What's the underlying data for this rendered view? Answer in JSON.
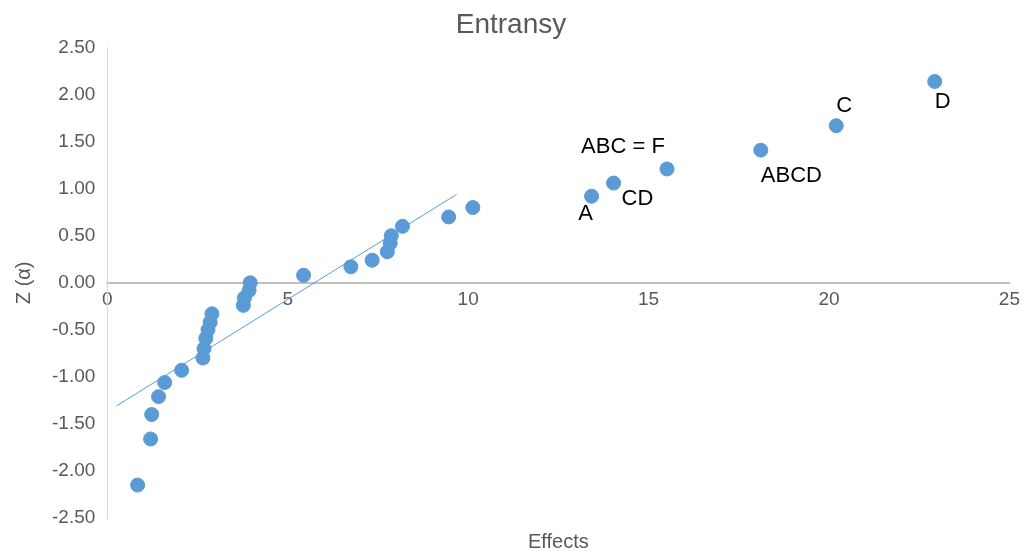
{
  "chart_data": {
    "type": "scatter",
    "title": "Entransy",
    "xlabel": "Effects",
    "ylabel": "Z (α)",
    "grid": false,
    "legend": false,
    "xlim": [
      0,
      25
    ],
    "xticks": [
      0,
      5,
      10,
      15,
      20,
      25
    ],
    "ylim": [
      -2.5,
      2.5
    ],
    "yticks": [
      {
        "value": -2.5,
        "label": "-2.50"
      },
      {
        "value": -2,
        "label": "-2.00"
      },
      {
        "value": -1.5,
        "label": "-1.50"
      },
      {
        "value": -1,
        "label": "-1.00"
      },
      {
        "value": -0.5,
        "label": "-0.50"
      },
      {
        "value": 0,
        "label": "0.00"
      },
      {
        "value": 0.5,
        "label": "0.50"
      },
      {
        "value": 1,
        "label": "1.00"
      },
      {
        "value": 1.5,
        "label": "1.50"
      },
      {
        "value": 2,
        "label": "2.00"
      },
      {
        "value": 2.5,
        "label": "2.50"
      }
    ],
    "series": [
      {
        "marker": "circle",
        "color": "#5b9bd5",
        "x": [
          0.84,
          1.2,
          1.23,
          1.42,
          1.59,
          2.06,
          2.65,
          2.68,
          2.73,
          2.79,
          2.85,
          2.9,
          3.77,
          3.8,
          3.93,
          3.96,
          5.44,
          6.75,
          7.34,
          7.76,
          7.84,
          7.87,
          8.18,
          9.46,
          10.13,
          13.42,
          14.03,
          15.51,
          18.11,
          20.2,
          22.93
        ],
        "values": [
          -2.15,
          -1.66,
          -1.4,
          -1.21,
          -1.06,
          -0.93,
          -0.8,
          -0.7,
          -0.59,
          -0.5,
          -0.42,
          -0.33,
          -0.24,
          -0.16,
          -0.08,
          0,
          0.08,
          0.17,
          0.24,
          0.33,
          0.42,
          0.5,
          0.6,
          0.7,
          0.8,
          0.92,
          1.06,
          1.21,
          1.41,
          1.67,
          2.14
        ]
      },
      {
        "type": "line",
        "marker": "none",
        "color": "#5b9bd5",
        "x": [
          0.25,
          9.68
        ],
        "values": [
          -1.31,
          0.94
        ]
      }
    ],
    "annotations": [
      {
        "text": "A",
        "x": 13.42,
        "y": 0.92
      },
      {
        "text": "CD",
        "x": 14.03,
        "y": 1.06
      },
      {
        "text": "ABC = F",
        "x": 15.51,
        "y": 1.21
      },
      {
        "text": "ABCD",
        "x": 18.11,
        "y": 1.41
      },
      {
        "text": "C",
        "x": 20.2,
        "y": 1.67
      },
      {
        "text": "D",
        "x": 22.93,
        "y": 2.14
      }
    ]
  }
}
